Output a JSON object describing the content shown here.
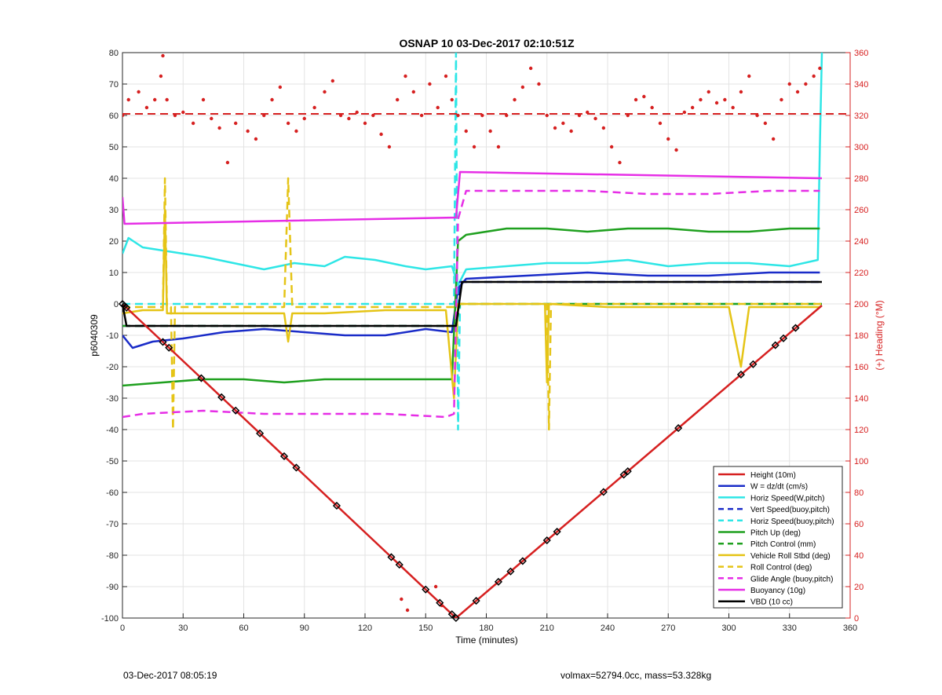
{
  "footer": {
    "left": "03-Dec-2017 08:05:19",
    "right": "volmax=52794.0cc, mass=53.328kg"
  },
  "chart_data": {
    "type": "line",
    "title": "OSNAP 10 03-Dec-2017 02:10:51Z",
    "xlabel": "Time (minutes)",
    "ylabel": "p6040309",
    "y2label": "(+) Heading (°M)",
    "xlim": [
      0,
      360
    ],
    "ylim": [
      -100,
      80
    ],
    "y2lim": [
      0,
      360
    ],
    "xticks": [
      0,
      30,
      60,
      90,
      120,
      150,
      180,
      210,
      240,
      270,
      300,
      330,
      360
    ],
    "yticks": [
      -100,
      -90,
      -80,
      -70,
      -60,
      -50,
      -40,
      -30,
      -20,
      -10,
      0,
      10,
      20,
      30,
      40,
      50,
      60,
      70,
      80
    ],
    "y2ticks": [
      0,
      20,
      40,
      60,
      80,
      100,
      120,
      140,
      160,
      180,
      200,
      220,
      240,
      260,
      280,
      300,
      320,
      340,
      360
    ],
    "grid": true,
    "legend_position": "lower-right",
    "colors": {
      "height": "#d62020",
      "w": "#1a2cc8",
      "horiz_speed": "#2ee6e6",
      "pitch": "#1fa01f",
      "roll": "#e5c416",
      "glide": "#e62ee6",
      "buoyancy": "#e62ee6",
      "vbd": "#000000",
      "right_axis": "#d62020"
    },
    "series": [
      {
        "key": "height",
        "name": "Height (10m)",
        "style": "solid",
        "color": "#d62020",
        "x": [
          0,
          165,
          346
        ],
        "y": [
          0,
          -100,
          -0.5
        ]
      },
      {
        "key": "w",
        "name": "W = dz/dt (cm/s)",
        "style": "solid",
        "color": "#1a2cc8",
        "x": [
          0,
          5,
          15,
          30,
          50,
          70,
          90,
          110,
          130,
          150,
          163,
          166,
          170,
          200,
          230,
          260,
          290,
          320,
          345
        ],
        "y": [
          -10,
          -14,
          -12,
          -11,
          -9,
          -8,
          -9,
          -10,
          -10,
          -8,
          -9,
          5,
          8,
          9,
          10,
          9,
          9,
          10,
          10
        ]
      },
      {
        "key": "horiz_speed",
        "name": "Horiz Speed(W,pitch)",
        "style": "solid",
        "color": "#2ee6e6",
        "x": [
          0,
          3,
          10,
          20,
          30,
          40,
          55,
          70,
          85,
          100,
          110,
          125,
          140,
          150,
          163,
          166,
          170,
          190,
          210,
          230,
          250,
          270,
          290,
          310,
          330,
          344,
          345,
          346
        ],
        "y": [
          16,
          21,
          18,
          17,
          16,
          15,
          13,
          11,
          13,
          12,
          15,
          14,
          12,
          11,
          12,
          6,
          11,
          12,
          13,
          13,
          14,
          12,
          13,
          13,
          12,
          14,
          50,
          80
        ]
      },
      {
        "key": "vert_speed_buoy",
        "name": "Vert Speed(buoy,pitch)",
        "style": "dashed",
        "color": "#1a2cc8",
        "x": [
          0,
          165,
          167,
          346
        ],
        "y": [
          -7,
          -7,
          7,
          7
        ]
      },
      {
        "key": "horiz_speed_buoy",
        "name": "Horiz Speed(buoy,pitch)",
        "style": "dashed",
        "color": "#2ee6e6",
        "x": [
          0,
          164,
          165,
          166,
          167,
          346
        ],
        "y": [
          0,
          0,
          80,
          -40,
          0,
          0
        ]
      },
      {
        "key": "pitch",
        "name": "Pitch Up (deg)",
        "style": "solid",
        "color": "#1fa01f",
        "x": [
          0,
          20,
          40,
          60,
          80,
          100,
          120,
          140,
          163,
          166,
          170,
          190,
          210,
          230,
          250,
          270,
          290,
          310,
          330,
          345
        ],
        "y": [
          -26,
          -25,
          -24,
          -24,
          -25,
          -24,
          -24,
          -24,
          -24,
          20,
          22,
          24,
          24,
          23,
          24,
          24,
          23,
          23,
          24,
          24
        ]
      },
      {
        "key": "pitch_control",
        "name": "Pitch Control (mm)",
        "style": "dashed",
        "color": "#1fa01f",
        "x": [
          0,
          165,
          167,
          346
        ],
        "y": [
          -7,
          -7,
          0,
          0
        ]
      },
      {
        "key": "roll",
        "name": "Vehicle Roll Stbd (deg)",
        "style": "solid",
        "color": "#e5c416",
        "x": [
          0,
          10,
          20,
          21,
          22,
          40,
          60,
          80,
          82,
          84,
          100,
          130,
          160,
          164,
          166,
          170,
          200,
          209,
          210,
          211,
          240,
          270,
          300,
          306,
          310,
          330,
          345
        ],
        "y": [
          -3,
          -2,
          -2,
          30,
          -3,
          -3,
          -3,
          -3,
          -12,
          -3,
          -3,
          -2,
          -2,
          -30,
          0,
          0,
          0,
          0,
          -25,
          0,
          -1,
          -1,
          -1,
          -20,
          -1,
          -1,
          -1
        ]
      },
      {
        "key": "roll_control",
        "name": "Roll Control (deg)",
        "style": "dashed",
        "color": "#e5c416",
        "x": [
          0,
          20,
          21,
          22,
          24,
          25,
          26,
          80,
          82,
          84,
          165,
          167,
          210,
          211,
          212,
          346
        ],
        "y": [
          -1,
          -1,
          40,
          -1,
          -1,
          -40,
          -1,
          -1,
          40,
          -1,
          -1,
          0,
          0,
          -40,
          0,
          0
        ]
      },
      {
        "key": "glide",
        "name": "Glide Angle (buoy,pitch)",
        "style": "dashed",
        "color": "#e62ee6",
        "x": [
          0,
          10,
          40,
          70,
          100,
          130,
          160,
          164,
          166,
          170,
          200,
          230,
          260,
          290,
          320,
          345
        ],
        "y": [
          -36,
          -35,
          -34,
          -35,
          -35,
          -35,
          -36,
          -35,
          27,
          36,
          36,
          36,
          35,
          35,
          36,
          36
        ]
      },
      {
        "key": "buoyancy",
        "name": "Buoyancy (10g)",
        "style": "solid",
        "color": "#e62ee6",
        "x": [
          0,
          1,
          165,
          167,
          346
        ],
        "y": [
          34,
          25.5,
          27.5,
          42,
          40
        ]
      },
      {
        "key": "vbd",
        "name": "VBD (10 cc)",
        "style": "solid",
        "color": "#000000",
        "x": [
          0,
          2,
          165,
          168,
          346
        ],
        "y": [
          0,
          -7,
          -7,
          7,
          7
        ]
      }
    ],
    "heading_points_deg": [
      {
        "x": 0,
        "y": 320
      },
      {
        "x": 3,
        "y": 330
      },
      {
        "x": 8,
        "y": 335
      },
      {
        "x": 12,
        "y": 325
      },
      {
        "x": 16,
        "y": 330
      },
      {
        "x": 19,
        "y": 345
      },
      {
        "x": 20,
        "y": 358
      },
      {
        "x": 22,
        "y": 330
      },
      {
        "x": 26,
        "y": 320
      },
      {
        "x": 30,
        "y": 322
      },
      {
        "x": 35,
        "y": 315
      },
      {
        "x": 40,
        "y": 330
      },
      {
        "x": 44,
        "y": 318
      },
      {
        "x": 48,
        "y": 312
      },
      {
        "x": 52,
        "y": 290
      },
      {
        "x": 56,
        "y": 315
      },
      {
        "x": 62,
        "y": 310
      },
      {
        "x": 66,
        "y": 305
      },
      {
        "x": 70,
        "y": 320
      },
      {
        "x": 74,
        "y": 330
      },
      {
        "x": 78,
        "y": 338
      },
      {
        "x": 82,
        "y": 315
      },
      {
        "x": 86,
        "y": 310
      },
      {
        "x": 90,
        "y": 318
      },
      {
        "x": 95,
        "y": 325
      },
      {
        "x": 100,
        "y": 335
      },
      {
        "x": 104,
        "y": 342
      },
      {
        "x": 108,
        "y": 320
      },
      {
        "x": 112,
        "y": 318
      },
      {
        "x": 116,
        "y": 322
      },
      {
        "x": 120,
        "y": 315
      },
      {
        "x": 124,
        "y": 320
      },
      {
        "x": 128,
        "y": 308
      },
      {
        "x": 132,
        "y": 300
      },
      {
        "x": 136,
        "y": 330
      },
      {
        "x": 140,
        "y": 345
      },
      {
        "x": 144,
        "y": 335
      },
      {
        "x": 148,
        "y": 320
      },
      {
        "x": 152,
        "y": 340
      },
      {
        "x": 156,
        "y": 325
      },
      {
        "x": 160,
        "y": 345
      },
      {
        "x": 163,
        "y": 330
      },
      {
        "x": 166,
        "y": 320
      },
      {
        "x": 170,
        "y": 310
      },
      {
        "x": 174,
        "y": 300
      },
      {
        "x": 178,
        "y": 320
      },
      {
        "x": 182,
        "y": 310
      },
      {
        "x": 186,
        "y": 300
      },
      {
        "x": 190,
        "y": 320
      },
      {
        "x": 194,
        "y": 330
      },
      {
        "x": 198,
        "y": 338
      },
      {
        "x": 202,
        "y": 350
      },
      {
        "x": 206,
        "y": 340
      },
      {
        "x": 210,
        "y": 320
      },
      {
        "x": 214,
        "y": 312
      },
      {
        "x": 218,
        "y": 315
      },
      {
        "x": 222,
        "y": 310
      },
      {
        "x": 226,
        "y": 320
      },
      {
        "x": 230,
        "y": 322
      },
      {
        "x": 234,
        "y": 318
      },
      {
        "x": 238,
        "y": 312
      },
      {
        "x": 242,
        "y": 300
      },
      {
        "x": 246,
        "y": 290
      },
      {
        "x": 250,
        "y": 320
      },
      {
        "x": 254,
        "y": 330
      },
      {
        "x": 258,
        "y": 332
      },
      {
        "x": 262,
        "y": 325
      },
      {
        "x": 266,
        "y": 315
      },
      {
        "x": 270,
        "y": 305
      },
      {
        "x": 274,
        "y": 298
      },
      {
        "x": 278,
        "y": 322
      },
      {
        "x": 282,
        "y": 325
      },
      {
        "x": 286,
        "y": 330
      },
      {
        "x": 290,
        "y": 335
      },
      {
        "x": 294,
        "y": 328
      },
      {
        "x": 298,
        "y": 330
      },
      {
        "x": 302,
        "y": 325
      },
      {
        "x": 306,
        "y": 335
      },
      {
        "x": 310,
        "y": 345
      },
      {
        "x": 314,
        "y": 320
      },
      {
        "x": 318,
        "y": 315
      },
      {
        "x": 322,
        "y": 305
      },
      {
        "x": 326,
        "y": 330
      },
      {
        "x": 330,
        "y": 340
      },
      {
        "x": 334,
        "y": 335
      },
      {
        "x": 338,
        "y": 340
      },
      {
        "x": 342,
        "y": 345
      },
      {
        "x": 345,
        "y": 350
      },
      {
        "x": 138,
        "y": 12
      },
      {
        "x": 141,
        "y": 5
      },
      {
        "x": 155,
        "y": 20
      },
      {
        "x": 158,
        "y": 8
      }
    ],
    "heading_mean_deg": 321,
    "dive_markers_minutes": [
      0,
      1,
      2,
      20,
      23,
      39,
      49,
      56,
      68,
      80,
      86,
      106,
      133,
      137,
      150,
      157,
      163,
      165,
      175,
      186,
      192,
      198,
      210,
      215,
      238,
      248,
      250,
      275,
      306,
      312,
      323,
      327,
      333
    ]
  }
}
